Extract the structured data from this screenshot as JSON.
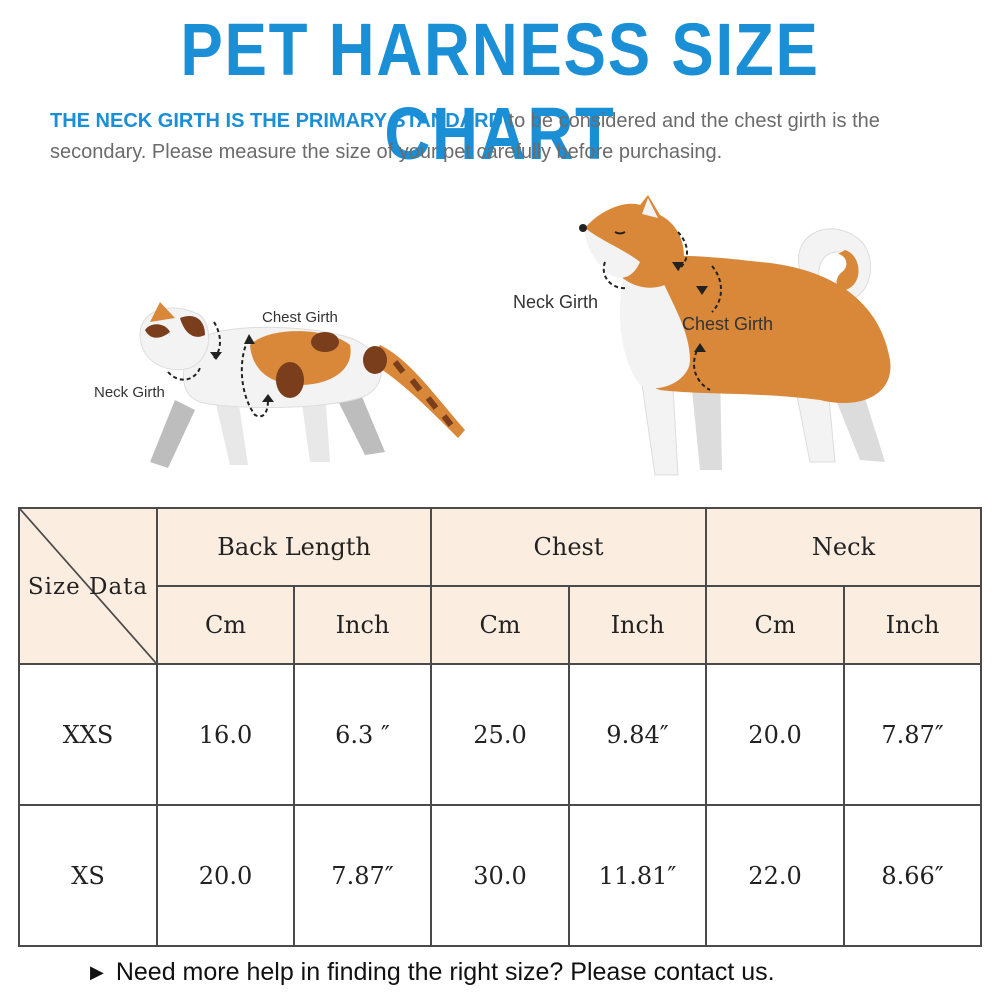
{
  "title": "PET HARNESS SIZE CHART",
  "intro": {
    "highlight": "THE NECK GIRTH IS THE PRIMARY STANDARD",
    "rest": " to be considered and the chest girth is the secondary. Please measure the size of your pet carefully before purchasing."
  },
  "illustration": {
    "cat_chest_label": "Chest Girth",
    "cat_neck_label": "Neck  Girth",
    "dog_neck_label": "Neck  Girth",
    "dog_chest_label": "Chest Girth"
  },
  "table": {
    "corner_label": "Size Data",
    "groups": [
      "Back Length",
      "Chest",
      "Neck"
    ],
    "units": [
      "Cm",
      "Inch",
      "Cm",
      "Inch",
      "Cm",
      "Inch"
    ],
    "rows": [
      {
        "size": "XXS",
        "values": [
          "16.0",
          "6.3 ″",
          "25.0",
          "9.84″",
          "20.0",
          "7.87″"
        ]
      },
      {
        "size": "XS",
        "values": [
          "20.0",
          "7.87″",
          "30.0",
          "11.81″",
          "22.0",
          "8.66″"
        ]
      }
    ]
  },
  "footer": {
    "arrow_icon": "triangle-right-icon",
    "text": "Need more help in finding the right size? Please contact us."
  },
  "colors": {
    "title": "#1a8fd6",
    "header_fill": "#fbeee0",
    "fur_orange": "#d9883a",
    "border": "#4a4a4a"
  }
}
